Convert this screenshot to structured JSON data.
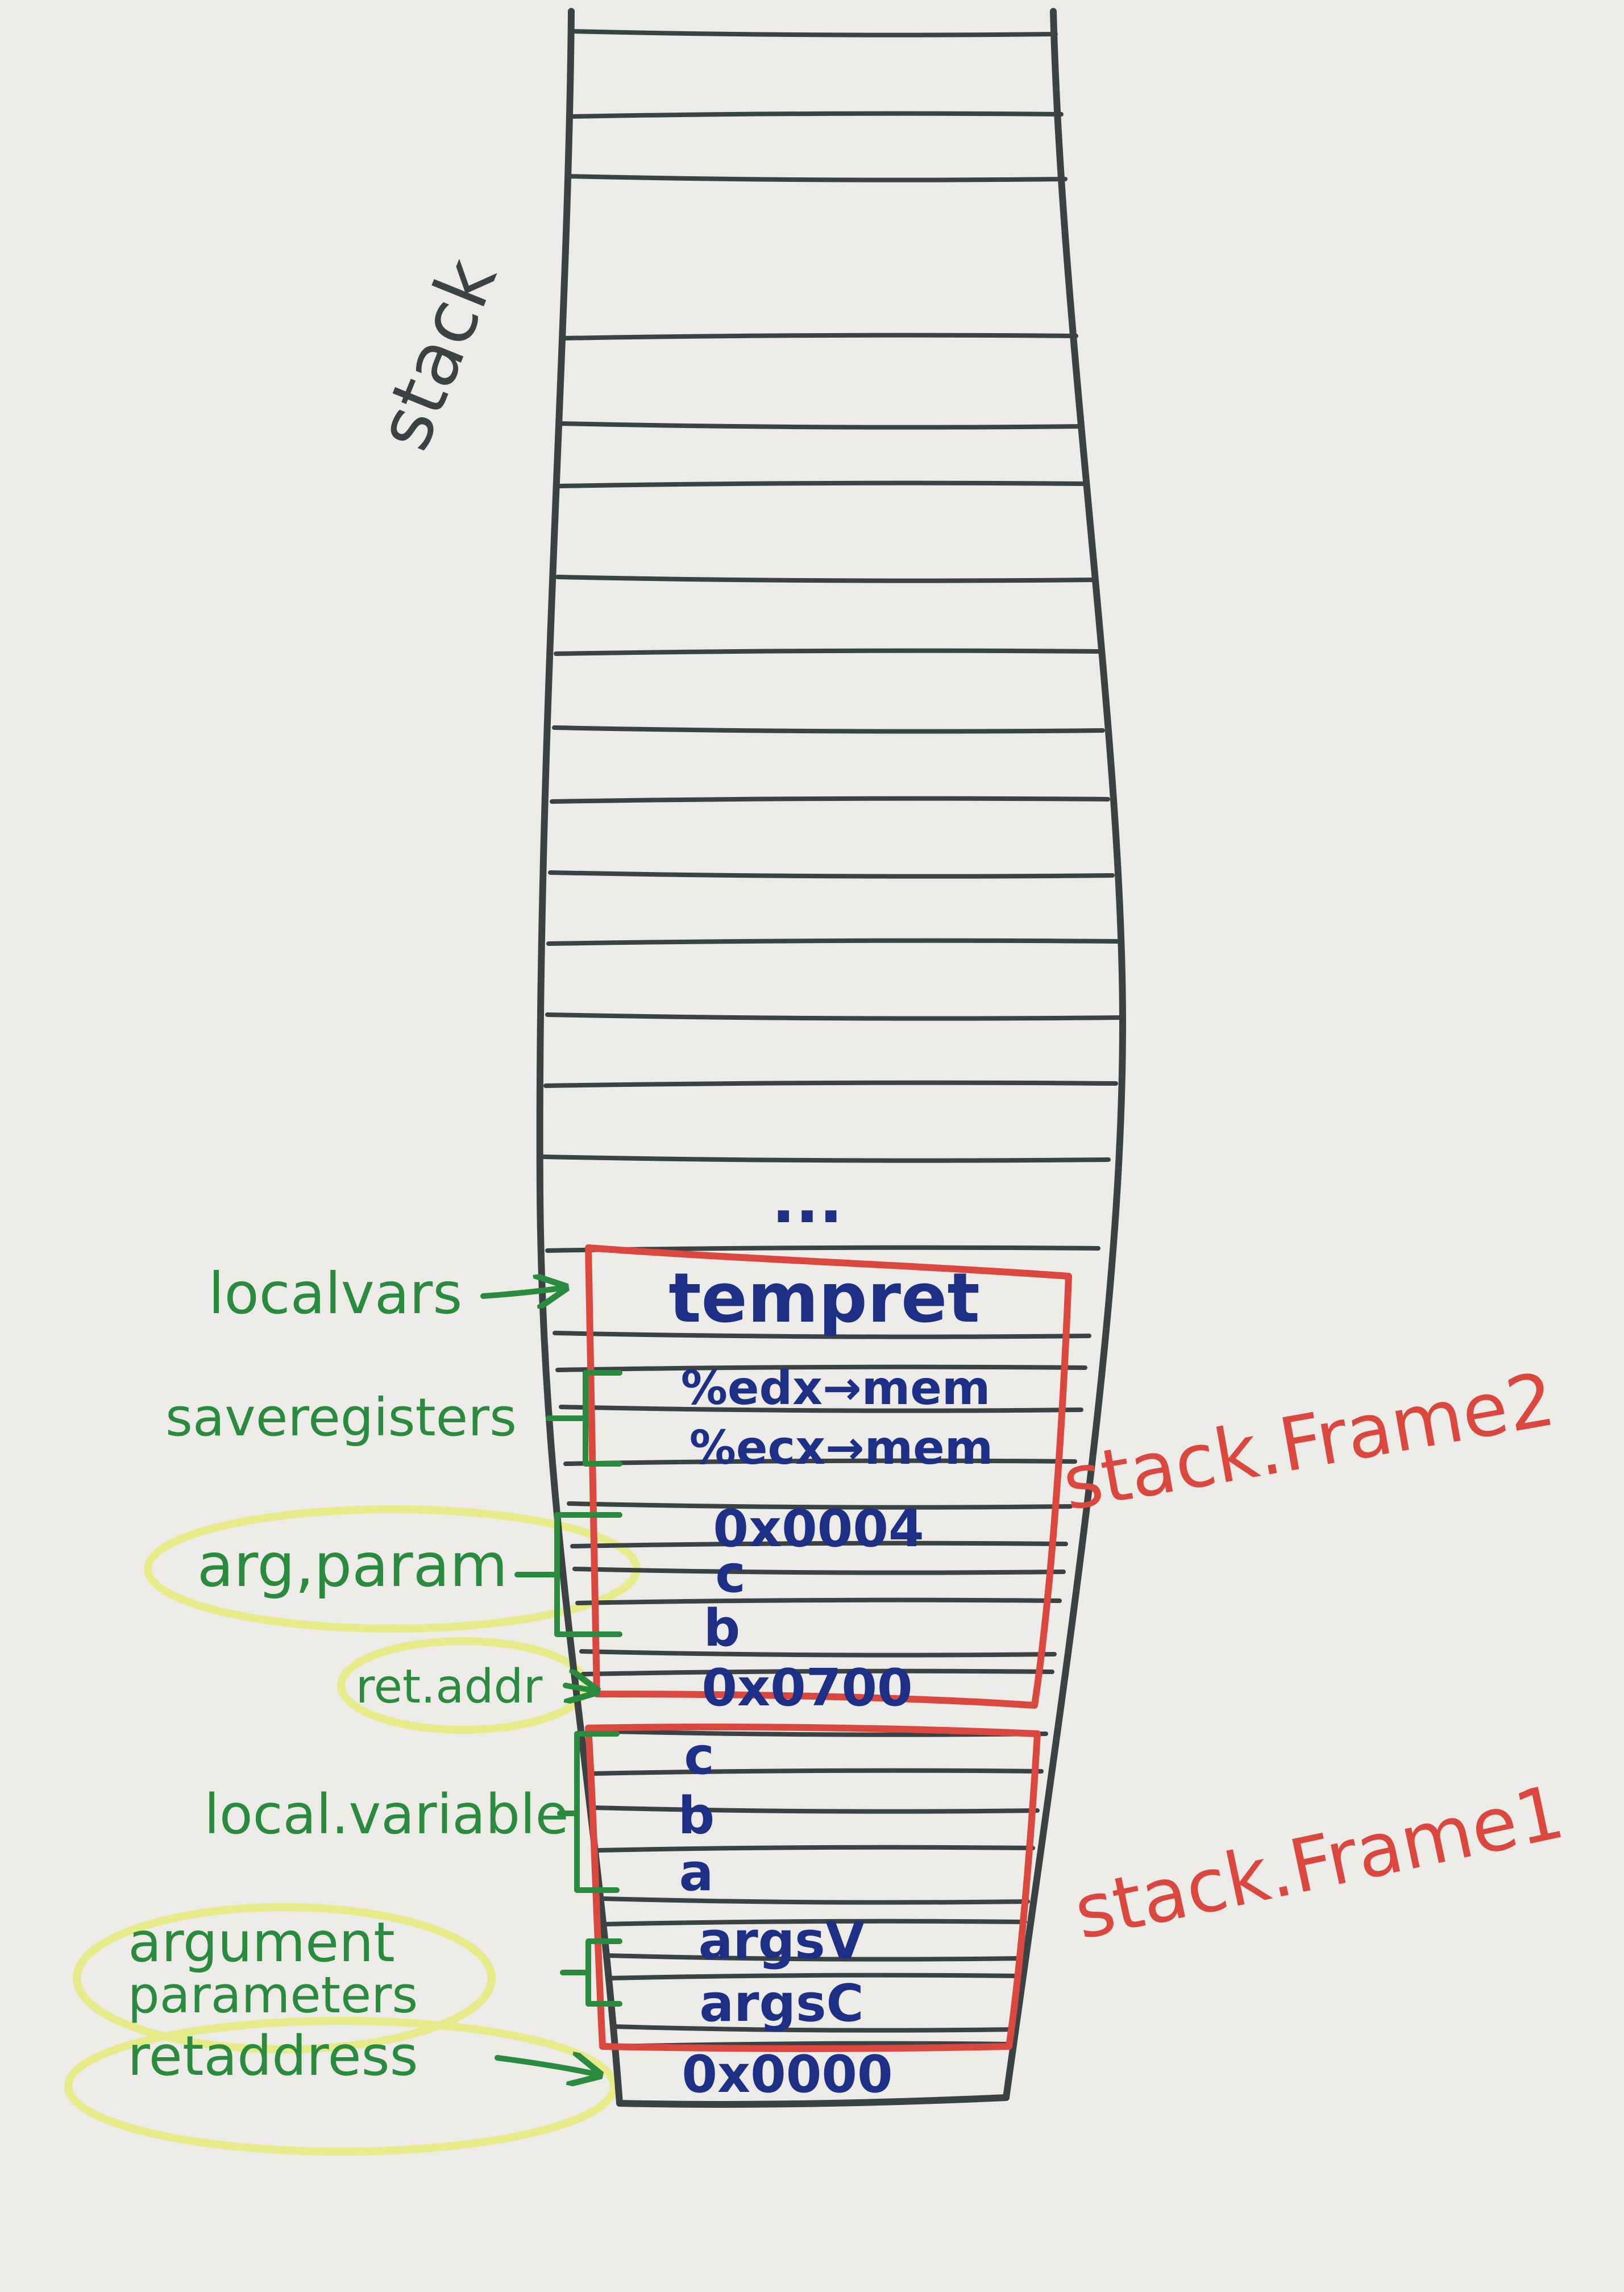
{
  "title": "stack",
  "ellipsis": "...",
  "colors": {
    "paper": "#ecebe8",
    "ink_black": "#3b4244",
    "ink_blue": "#1e2f86",
    "ink_red": "#d9473f",
    "ink_green": "#2a8a3e",
    "highlight": "#e6ec7a"
  },
  "frames": [
    {
      "label": "stack.Frame2"
    },
    {
      "label": "stack.Frame1"
    }
  ],
  "cells": [
    {
      "text": "tempret"
    },
    {
      "text": "%edx→mem"
    },
    {
      "text": "%ecx→mem"
    },
    {
      "text": "0x0004"
    },
    {
      "text": "c"
    },
    {
      "text": "b"
    },
    {
      "text": "0x0700"
    },
    {
      "text": "c"
    },
    {
      "text": "b"
    },
    {
      "text": "a"
    },
    {
      "text": "argsV"
    },
    {
      "text": "argsC"
    },
    {
      "text": "0x0000"
    }
  ],
  "annotations": [
    {
      "text": "localvars"
    },
    {
      "text": "saveregisters"
    },
    {
      "text": "arg,param"
    },
    {
      "text": "ret.addr"
    },
    {
      "text": "local.variable"
    },
    {
      "text": "argument"
    },
    {
      "text": "parameters"
    },
    {
      "text": "retaddress"
    }
  ]
}
